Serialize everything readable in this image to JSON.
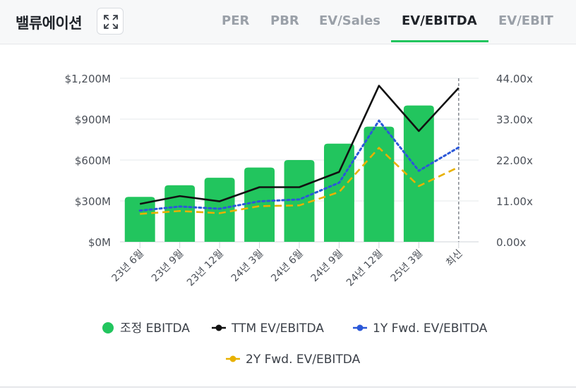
{
  "header": {
    "title": "밸류에이션",
    "tabs": [
      {
        "label": "PER",
        "active": false
      },
      {
        "label": "PBR",
        "active": false
      },
      {
        "label": "EV/Sales",
        "active": false
      },
      {
        "label": "EV/EBITDA",
        "active": true
      },
      {
        "label": "EV/EBIT",
        "active": false
      }
    ]
  },
  "colors": {
    "bar": "#22c55e",
    "ttm": "#111111",
    "fwd1y": "#2b58d8",
    "fwd2y": "#e8b100",
    "accent": "#22c55e"
  },
  "chart_data": {
    "type": "bar",
    "categories": [
      "23년 6월",
      "23년 9월",
      "23년 12월",
      "24년 3월",
      "24년 6월",
      "24년 9월",
      "24년 12월",
      "25년 3월",
      "최신"
    ],
    "y_left": {
      "ticks": [
        "$0M",
        "$300M",
        "$600M",
        "$900M",
        "$1,200M"
      ],
      "lim": [
        0,
        1200
      ]
    },
    "y_right": {
      "ticks": [
        "0.00x",
        "11.00x",
        "22.00x",
        "33.00x",
        "44.00x"
      ],
      "lim": [
        0,
        44
      ]
    },
    "series": [
      {
        "name": "조정 EBITDA",
        "type": "bar",
        "axis": "left",
        "values": [
          330,
          415,
          470,
          545,
          600,
          720,
          845,
          1000,
          null
        ]
      },
      {
        "name": "TTM EV/EBITDA",
        "type": "line",
        "axis": "right",
        "style": "solid",
        "values": [
          10.2,
          12.3,
          10.9,
          14.7,
          14.7,
          18.8,
          42.0,
          29.8,
          41.4
        ]
      },
      {
        "name": "1Y Fwd. EV/EBITDA",
        "type": "line",
        "axis": "right",
        "style": "dotted",
        "values": [
          8.4,
          9.5,
          8.9,
          10.9,
          11.4,
          15.9,
          32.6,
          19.1,
          25.4
        ]
      },
      {
        "name": "2Y Fwd. EV/EBITDA",
        "type": "line",
        "axis": "right",
        "style": "dashed",
        "values": [
          7.5,
          8.3,
          7.7,
          9.6,
          9.8,
          13.4,
          25.3,
          15.0,
          20.1
        ]
      }
    ],
    "legend_position": "bottom",
    "grid": true
  }
}
